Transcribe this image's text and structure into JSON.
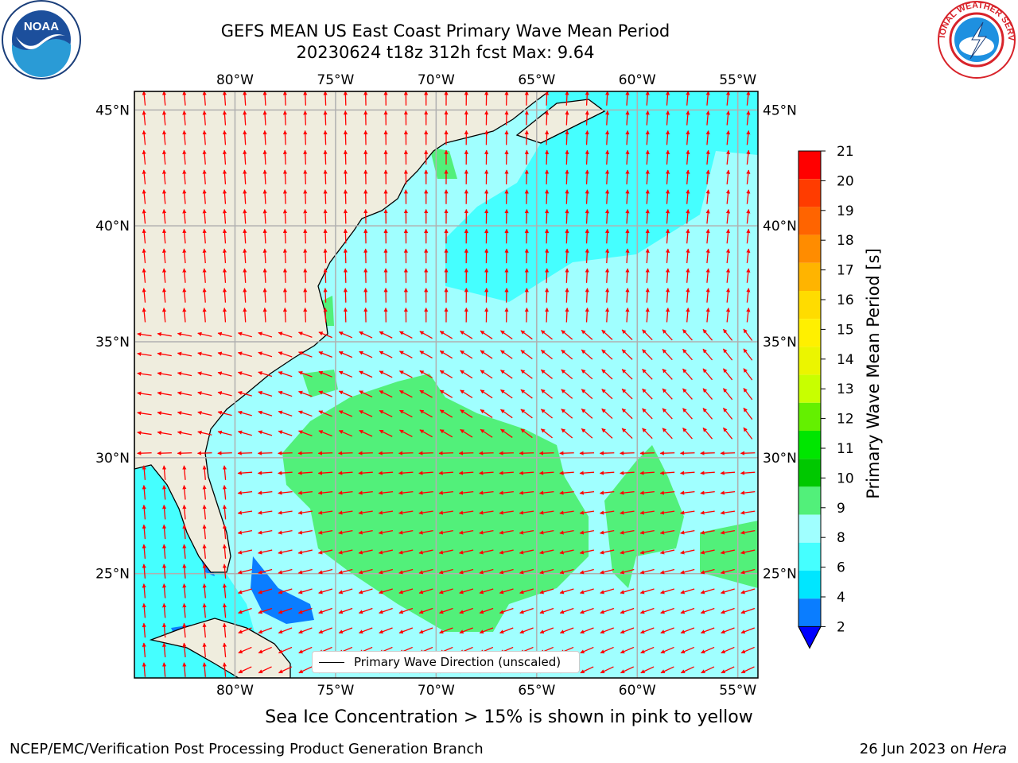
{
  "title": {
    "line1": "GEFS MEAN US East Coast Primary Wave Mean Period",
    "line2": "20230624 t18z 312h fcst   Max: 9.64"
  },
  "logos": {
    "noaa": "NOAA",
    "nws": "NATIONAL WEATHER SERVICE"
  },
  "map": {
    "lon_range": [
      -85,
      -54
    ],
    "lat_range": [
      20.5,
      45.8
    ],
    "lon_ticks": [
      "80°W",
      "75°W",
      "70°W",
      "65°W",
      "60°W",
      "55°W"
    ],
    "lon_tick_values": [
      -80,
      -75,
      -70,
      -65,
      -60,
      -55
    ],
    "lat_ticks": [
      "45°N",
      "40°N",
      "35°N",
      "30°N",
      "25°N"
    ],
    "lat_tick_values": [
      45,
      40,
      35,
      30,
      25
    ],
    "land_color": "#efedde",
    "grid_color": "#b0b0b0",
    "arrow_color": "#ff0000",
    "legend": "Primary Wave Direction (unscaled)"
  },
  "colorbar": {
    "label": "Primary Wave Mean Period [s]",
    "ticks": [
      "2",
      "4",
      "6",
      "8",
      "9",
      "10",
      "11",
      "12",
      "13",
      "14",
      "15",
      "16",
      "17",
      "18",
      "19",
      "20",
      "21"
    ],
    "colors": [
      "#0a7dff",
      "#00e6ff",
      "#45ffff",
      "#a0ffff",
      "#52f07a",
      "#00c800",
      "#00e600",
      "#64f000",
      "#c8ff00",
      "#ebf500",
      "#fff000",
      "#ffdc00",
      "#ffb400",
      "#ff8c00",
      "#ff6400",
      "#ff3c00",
      "#ff0000"
    ],
    "extend_color": "#0000ff"
  },
  "subtitle": "Sea Ice Concentration > 15% is shown in pink to yellow",
  "footer": {
    "left": "NCEP/EMC/Verification Post Processing Product Generation Branch",
    "right_date": "26 Jun 2023 on ",
    "right_machine": "Hera"
  }
}
